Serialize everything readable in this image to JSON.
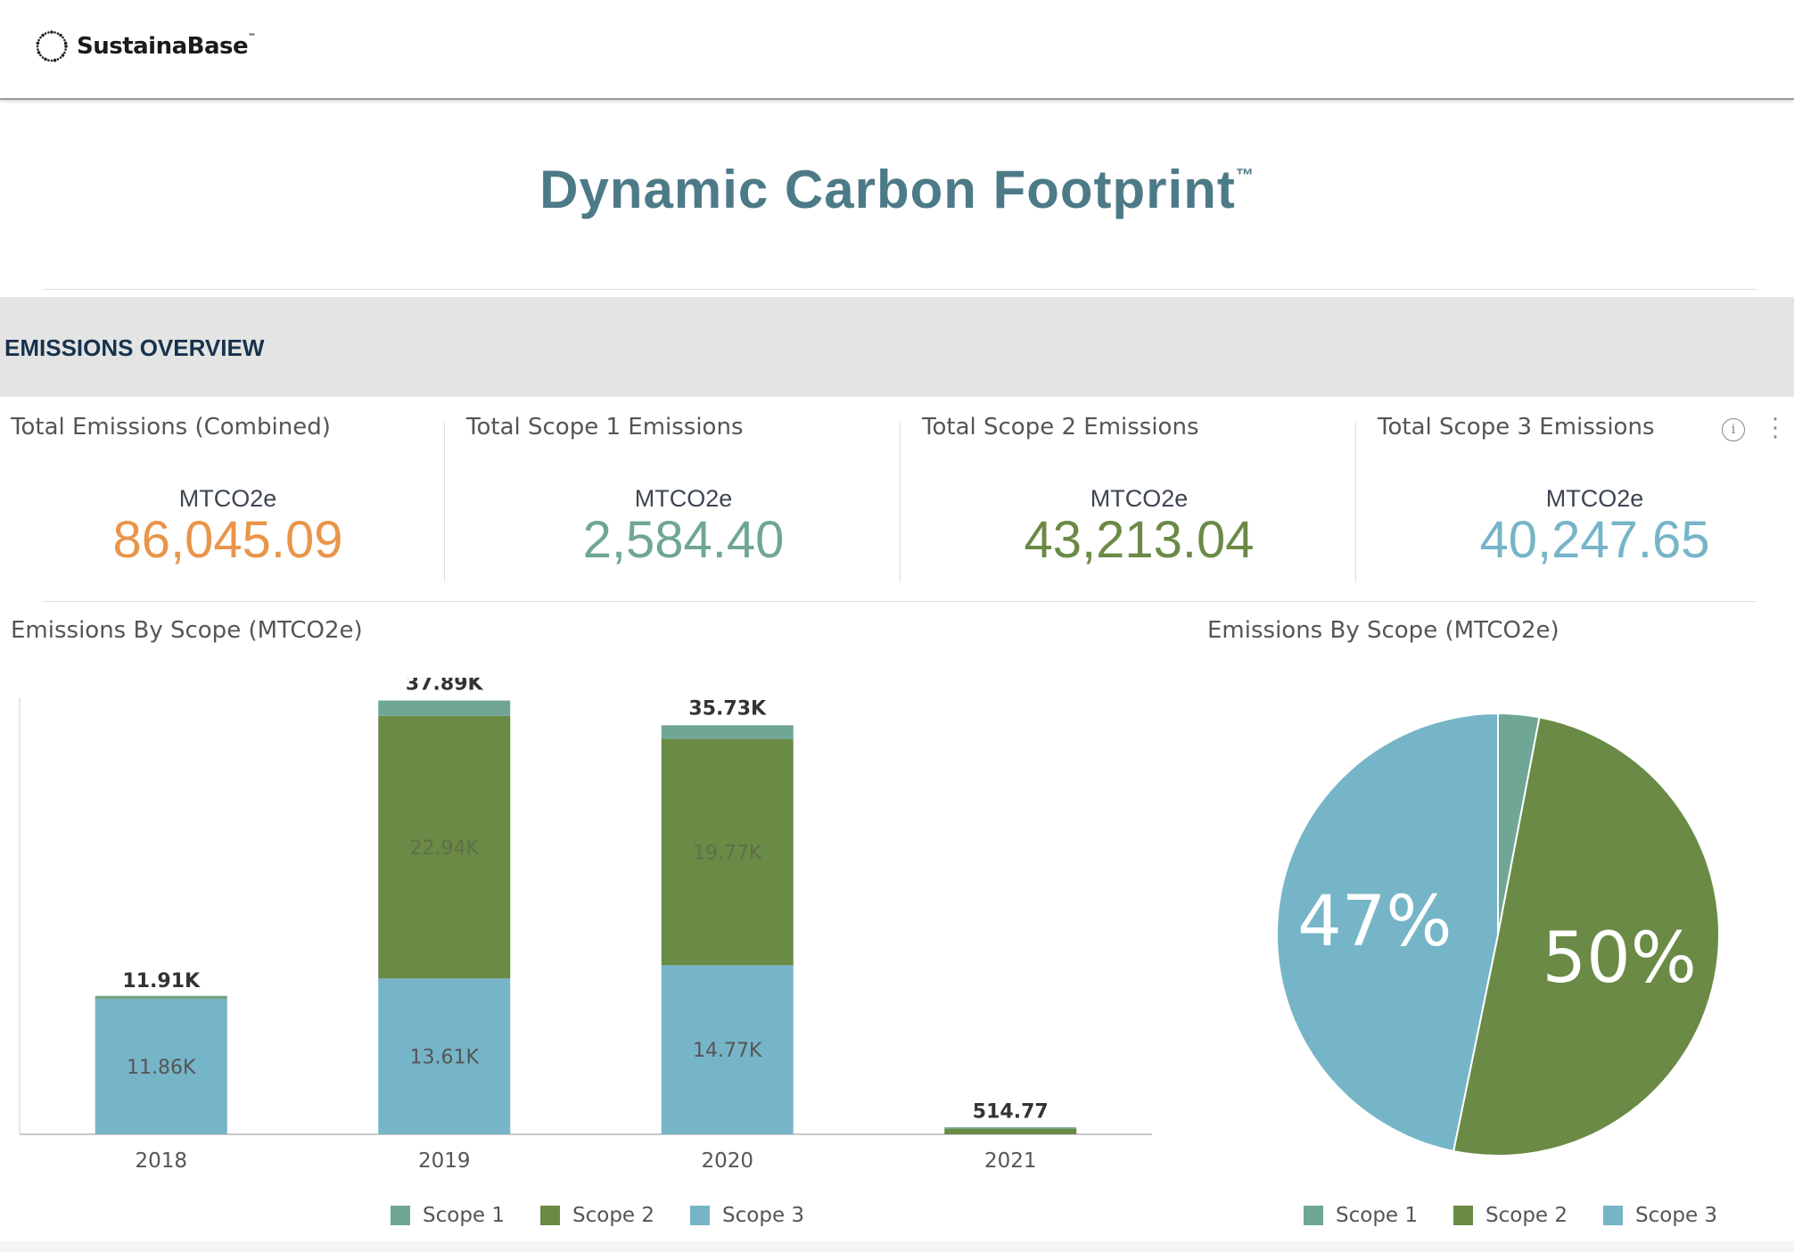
{
  "brand": {
    "name": "SustainaBase",
    "tm": "™"
  },
  "page": {
    "title": "Dynamic Carbon Footprint",
    "title_tm": "™"
  },
  "section": {
    "title": "EMISSIONS OVERVIEW"
  },
  "colors": {
    "scope1": "#6fa696",
    "scope2": "#6a8a45",
    "scope3": "#76b5c8",
    "combined": "#e8954a",
    "title": "#4d7a87"
  },
  "kpis": [
    {
      "title": "Total Emissions (Combined)",
      "unit": "MTCO2e",
      "value": "86,045.09",
      "color": "#e8954a"
    },
    {
      "title": "Total Scope 1 Emissions",
      "unit": "MTCO2e",
      "value": "2,584.40",
      "color": "#6fa696"
    },
    {
      "title": "Total Scope 2 Emissions",
      "unit": "MTCO2e",
      "value": "43,213.04",
      "color": "#6a8a45"
    },
    {
      "title": "Total Scope 3 Emissions",
      "unit": "MTCO2e",
      "value": "40,247.65",
      "color": "#76b5c8"
    }
  ],
  "icons": {
    "info": "info-icon",
    "more": "more-vertical-icon"
  },
  "chart_data": [
    {
      "type": "bar",
      "stacked": true,
      "title": "Emissions By Scope (MTCO2e)",
      "categories": [
        "2018",
        "2019",
        "2020",
        "2021"
      ],
      "series": [
        {
          "name": "Scope 1",
          "color": "#6fa696",
          "values": [
            30,
            1340,
            1190,
            20
          ]
        },
        {
          "name": "Scope 2",
          "color": "#6a8a45",
          "values": [
            20,
            22940,
            19770,
            494.77
          ]
        },
        {
          "name": "Scope 3",
          "color": "#76b5c8",
          "values": [
            11860,
            13610,
            14770,
            0
          ]
        }
      ],
      "segment_labels": {
        "Scope 2": [
          "",
          "22.94K",
          "19.77K",
          ""
        ],
        "Scope 3": [
          "11.86K",
          "13.61K",
          "14.77K",
          ""
        ]
      },
      "totals_labels": [
        "11.91K",
        "37.89K",
        "35.73K",
        "514.77"
      ],
      "ylim": [
        0,
        43000
      ],
      "legend": "bottom"
    },
    {
      "type": "pie",
      "title": "Emissions By Scope (MTCO2e)",
      "labels": [
        "Scope 1",
        "Scope 2",
        "Scope 3"
      ],
      "values": [
        2584.4,
        43213.04,
        40247.65
      ],
      "colors": [
        "#6fa696",
        "#6a8a45",
        "#76b5c8"
      ],
      "slice_labels": [
        "",
        "50%",
        "47%"
      ],
      "legend": "bottom"
    }
  ]
}
